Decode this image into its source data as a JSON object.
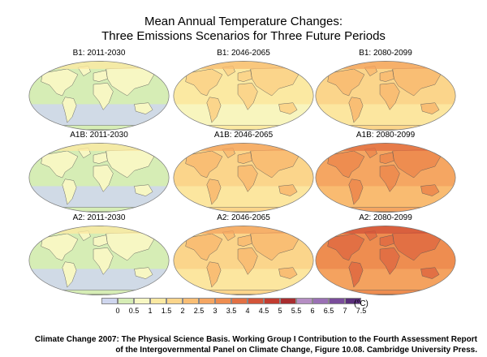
{
  "title": {
    "line1": "Mean Annual Temperature Changes:",
    "line2": "Three Emissions Scenarios for Three Future Periods"
  },
  "panels": [
    {
      "label": "B1: 2011-2030",
      "base": 1
    },
    {
      "label": "B1: 2046-2065",
      "base": 3
    },
    {
      "label": "B1: 2080-2099",
      "base": 4
    },
    {
      "label": "A1B: 2011-2030",
      "base": 1
    },
    {
      "label": "A1B: 2046-2065",
      "base": 4
    },
    {
      "label": "A1B: 2080-2099",
      "base": 6
    },
    {
      "label": "A2: 2011-2030",
      "base": 1
    },
    {
      "label": "A2: 2046-2065",
      "base": 4
    },
    {
      "label": "A2: 2080-2099",
      "base": 7
    }
  ],
  "legend": {
    "ticks": [
      "0",
      "0.5",
      "1",
      "1.5",
      "2",
      "2.5",
      "3",
      "3.5",
      "4",
      "4.5",
      "5",
      "5.5",
      "6",
      "6.5",
      "7",
      "7.5"
    ],
    "colors": [
      "#cfd6ee",
      "#d6edb5",
      "#f7f7c3",
      "#fbe9a2",
      "#fbd58b",
      "#f9be74",
      "#f5a662",
      "#ee8d50",
      "#e27044",
      "#d3553a",
      "#c23c30",
      "#a82d2f",
      "#b58ec3",
      "#9a70b4",
      "#7a4d9b",
      "#5a2f7a"
    ],
    "unit": "(°C)"
  },
  "caption": {
    "line1": "Climate Change 2007: The Physical Science Basis. Working Group I Contribution to the Fourth Assessment Report",
    "line2": "of the Intergovernmental Panel on Climate Change, Figure 10.08. Cambridge University Press."
  }
}
